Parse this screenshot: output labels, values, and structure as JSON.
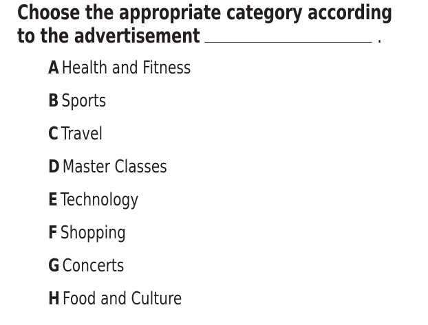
{
  "question": {
    "line1": "Choose the appropriate category according",
    "line2": "to the advertisement",
    "end": "."
  },
  "options": [
    {
      "letter": "A",
      "label": "Health and Fitness"
    },
    {
      "letter": "B",
      "label": "Sports"
    },
    {
      "letter": "C",
      "label": "Travel"
    },
    {
      "letter": "D",
      "label": "Master Classes"
    },
    {
      "letter": "E",
      "label": "Technology"
    },
    {
      "letter": "F",
      "label": "Shopping"
    },
    {
      "letter": "G",
      "label": "Concerts"
    },
    {
      "letter": "H",
      "label": "Food and Culture"
    }
  ]
}
